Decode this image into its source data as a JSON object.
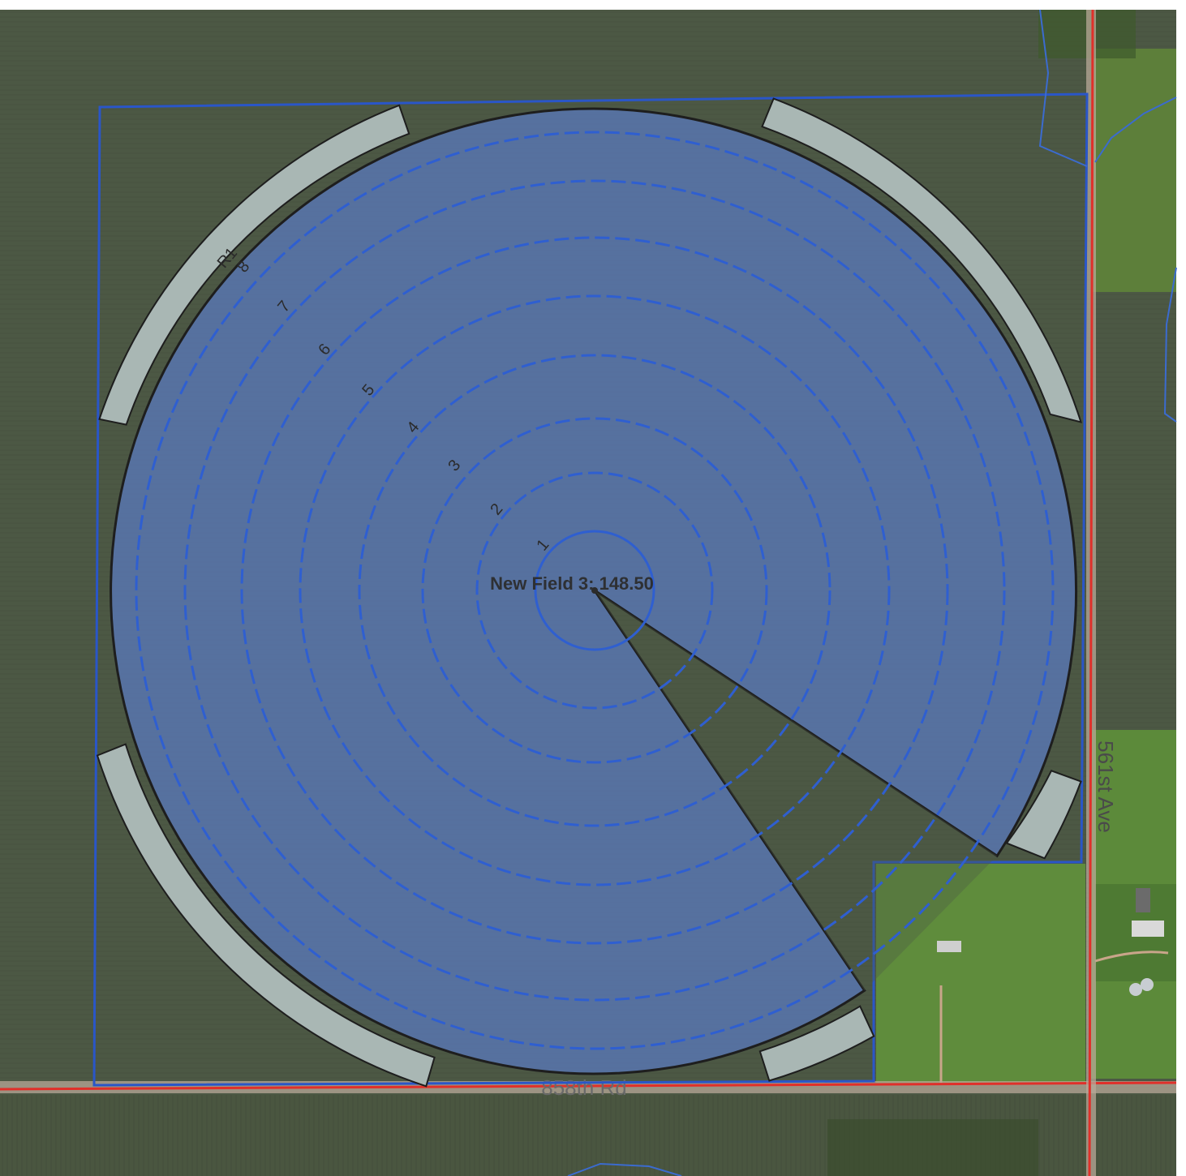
{
  "field": {
    "label": "New Field 3: 148.50"
  },
  "rings": [
    {
      "label": "1"
    },
    {
      "label": "2"
    },
    {
      "label": "3"
    },
    {
      "label": "4"
    },
    {
      "label": "5"
    },
    {
      "label": "6"
    },
    {
      "label": "7"
    },
    {
      "label": "8"
    },
    {
      "label": "R1"
    }
  ],
  "roads": {
    "south": "858th Rd",
    "east": "561st Ave"
  },
  "colors": {
    "coverage_fill": "#5a78b8",
    "tower_ring": "#2f5fd0",
    "boundary": "#2a56c8",
    "road_line": "#e0302a",
    "end_gun_fill": "#a9b7b4",
    "outline": "#1e1e1e",
    "field_dark": "#4b5643",
    "field_grass": "#5f8a3c"
  }
}
